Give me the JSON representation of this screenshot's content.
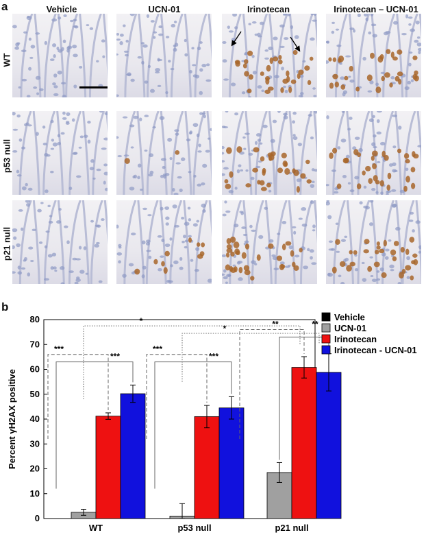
{
  "panel_labels": {
    "a": "a",
    "b": "b"
  },
  "columns": [
    "Vehicle",
    "UCN-01",
    "Irinotecan",
    "Irinotecan – UCN-01"
  ],
  "rows": [
    "WT",
    "p53 null",
    "p21 null"
  ],
  "chart_data": {
    "type": "bar",
    "title": "",
    "xlabel": "",
    "ylabel": "Percent γH2AX positive",
    "ylim": [
      0,
      80
    ],
    "yticks": [
      0,
      10,
      20,
      30,
      40,
      50,
      60,
      70,
      80
    ],
    "categories": [
      "WT",
      "p53 null",
      "p21 null"
    ],
    "legend_position": "right",
    "series": [
      {
        "name": "Vehicle",
        "color": "#000000",
        "values": [
          0,
          0,
          0
        ],
        "errors": [
          0,
          0,
          0
        ]
      },
      {
        "name": "UCN-01",
        "color": "#a0a0a0",
        "values": [
          2.5,
          1.0,
          18.5
        ],
        "errors": [
          1.2,
          5.0,
          4.0
        ]
      },
      {
        "name": "Irinotecan",
        "color": "#ee1111",
        "values": [
          41.2,
          41.0,
          60.8
        ],
        "errors": [
          1.3,
          4.5,
          4.3
        ]
      },
      {
        "name": "Irinotecan - UCN-01",
        "color": "#1111dd",
        "values": [
          50.2,
          44.5,
          58.8
        ],
        "errors": [
          3.5,
          4.5,
          7.5
        ]
      }
    ],
    "significance": [
      "***",
      "***",
      "***",
      "***",
      "**",
      "**",
      "*",
      "*"
    ]
  }
}
